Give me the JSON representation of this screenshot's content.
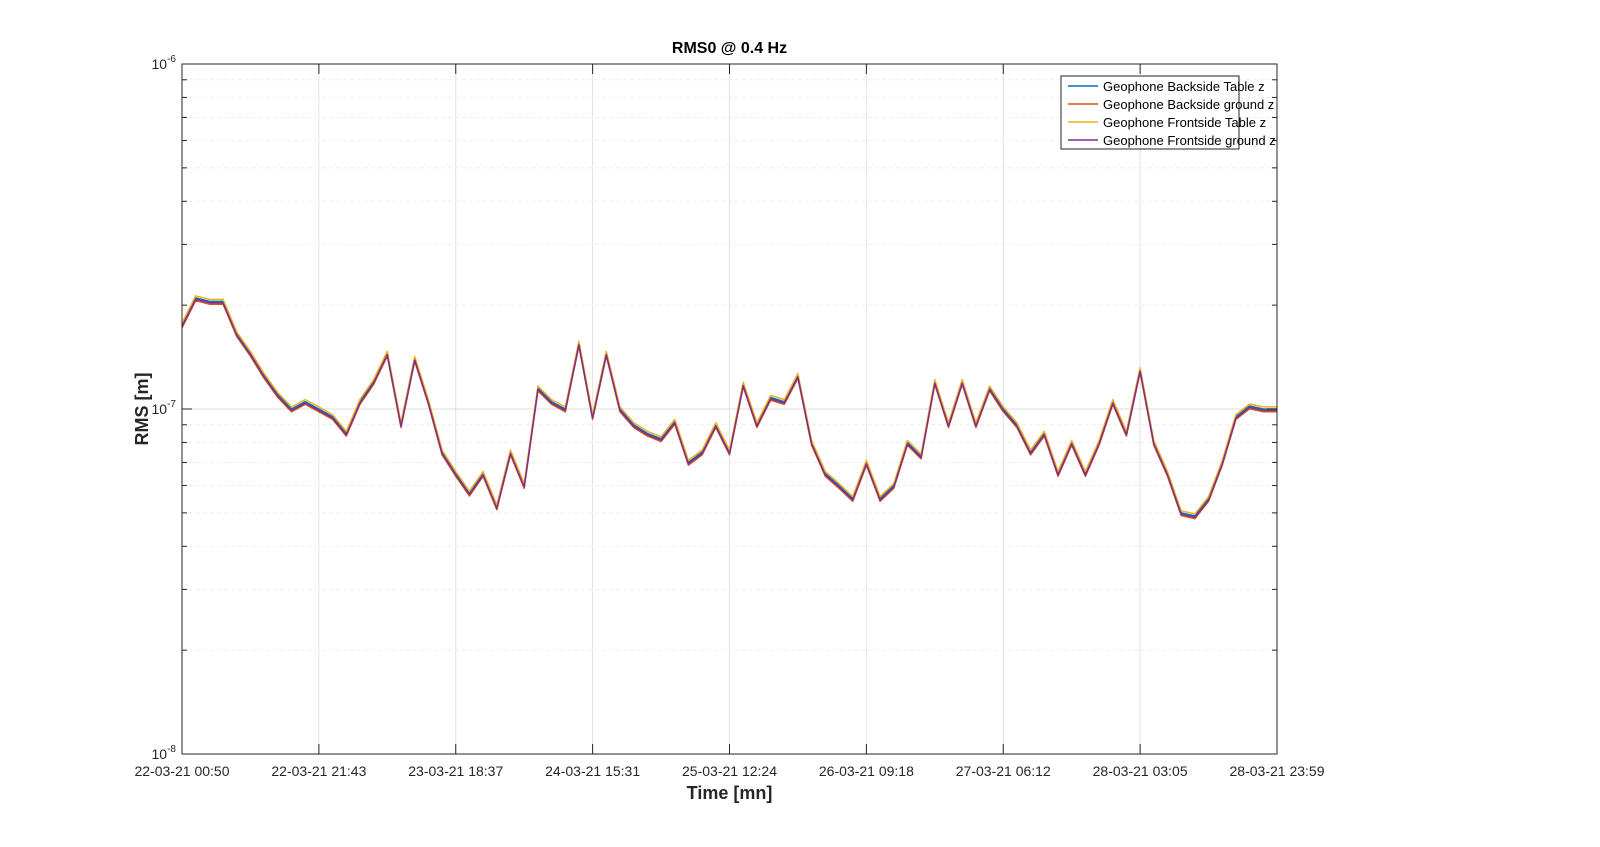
{
  "chart_data": {
    "type": "line",
    "title": "RMS0 @ 0.4 Hz",
    "xlabel": "Time [mn]",
    "ylabel": "RMS [m]",
    "yscale": "log",
    "ylim": [
      1e-08,
      1e-06
    ],
    "yticks": [
      {
        "base": "10",
        "exp": "-8"
      },
      {
        "base": "10",
        "exp": "-7"
      },
      {
        "base": "10",
        "exp": "-6"
      }
    ],
    "xticks": [
      "22-03-21 00:50",
      "22-03-21 21:43",
      "23-03-21 18:37",
      "24-03-21 15:31",
      "25-03-21 12:24",
      "26-03-21 09:18",
      "27-03-21 06:12",
      "28-03-21 03:05",
      "28-03-21 23:59"
    ],
    "xlim": [
      0,
      8
    ],
    "grid": true,
    "legend_position": "top-right",
    "series_colors": [
      "#0072BD",
      "#D95319",
      "#EDB120",
      "#7E2F8E"
    ],
    "series": [
      {
        "name": "Geophone Backside Table z",
        "offset_decades": 0.0
      },
      {
        "name": "Geophone Backside ground z",
        "offset_decades": -0.008
      },
      {
        "name": "Geophone Frontside Table z",
        "offset_decades": 0.006
      },
      {
        "name": "Geophone Frontside ground z",
        "offset_decades": -0.004
      }
    ],
    "base_series": {
      "x": [
        0.0,
        0.1,
        0.2,
        0.3,
        0.4,
        0.5,
        0.6,
        0.7,
        0.8,
        0.9,
        1.0,
        1.1,
        1.2,
        1.3,
        1.4,
        1.5,
        1.6,
        1.7,
        1.8,
        1.9,
        2.0,
        2.1,
        2.2,
        2.3,
        2.4,
        2.5,
        2.6,
        2.7,
        2.8,
        2.9,
        3.0,
        3.1,
        3.2,
        3.3,
        3.4,
        3.5,
        3.6,
        3.7,
        3.8,
        3.9,
        4.0,
        4.1,
        4.2,
        4.3,
        4.4,
        4.5,
        4.6,
        4.7,
        4.8,
        4.9,
        5.0,
        5.1,
        5.2,
        5.3,
        5.4,
        5.5,
        5.6,
        5.7,
        5.8,
        5.9,
        6.0,
        6.1,
        6.2,
        6.3,
        6.4,
        6.5,
        6.6,
        6.7,
        6.8,
        6.9,
        7.0,
        7.1,
        7.2,
        7.3,
        7.4,
        7.5,
        7.6,
        7.7,
        7.8,
        7.9,
        8.0
      ],
      "y": [
        1.75e-07,
        2.1e-07,
        2.05e-07,
        2.05e-07,
        1.65e-07,
        1.45e-07,
        1.25e-07,
        1.1e-07,
        1e-07,
        1.05e-07,
        1e-07,
        9.5e-08,
        8.5e-08,
        1.05e-07,
        1.2e-07,
        1.45e-07,
        9e-08,
        1.4e-07,
        1.05e-07,
        7.5e-08,
        6.5e-08,
        5.7e-08,
        6.5e-08,
        5.2e-08,
        7.5e-08,
        6e-08,
        1.15e-07,
        1.05e-07,
        1e-07,
        1.55e-07,
        9.5e-08,
        1.45e-07,
        1e-07,
        9e-08,
        8.5e-08,
        8.2e-08,
        9.2e-08,
        7e-08,
        7.5e-08,
        9e-08,
        7.5e-08,
        1.18e-07,
        9e-08,
        1.08e-07,
        1.05e-07,
        1.25e-07,
        8e-08,
        6.5e-08,
        6e-08,
        5.5e-08,
        7e-08,
        5.5e-08,
        6e-08,
        8e-08,
        7.3e-08,
        1.2e-07,
        9e-08,
        1.2e-07,
        9e-08,
        1.15e-07,
        1e-07,
        9e-08,
        7.5e-08,
        8.5e-08,
        6.5e-08,
        8e-08,
        6.5e-08,
        8e-08,
        1.05e-07,
        8.5e-08,
        1.3e-07,
        8e-08,
        6.5e-08,
        5e-08,
        4.9e-08,
        5.5e-08,
        7e-08,
        9.5e-08,
        1.02e-07,
        1e-07,
        1e-07
      ]
    }
  }
}
